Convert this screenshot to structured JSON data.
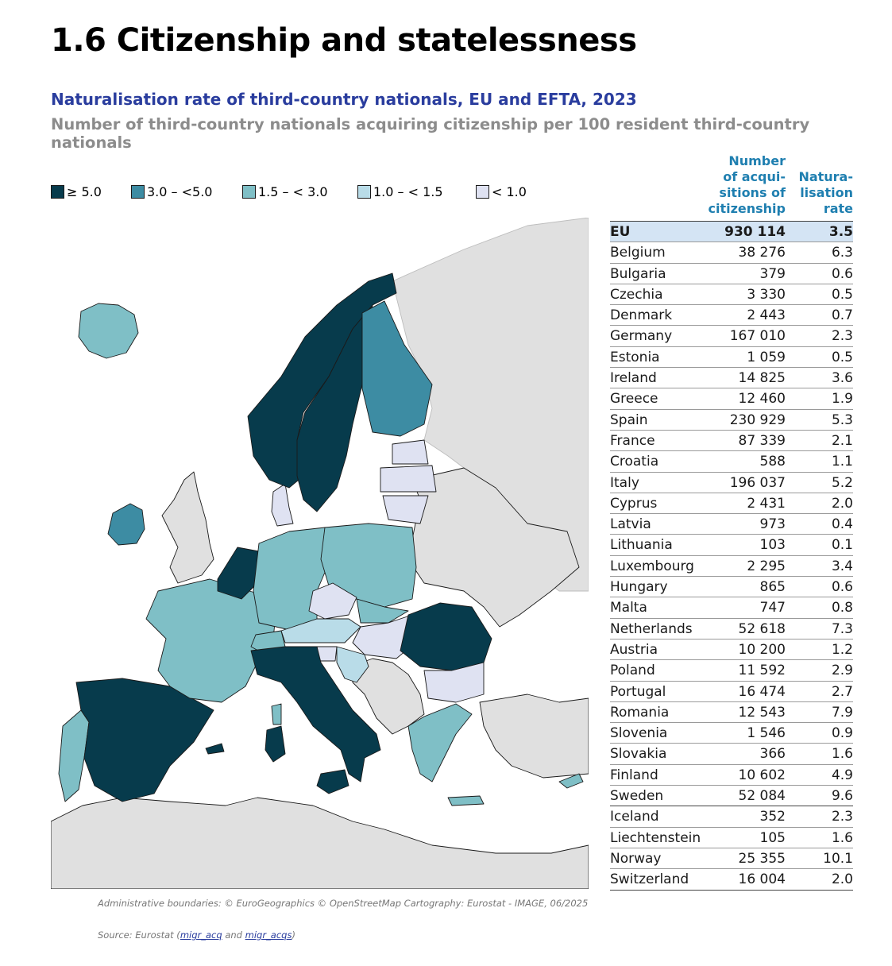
{
  "page_title": "1.6 Citizenship and statelessness",
  "chart_title": "Naturalisation rate of third-country nationals, EU and EFTA, 2023",
  "chart_subtitle": "Number of third-country nationals acquiring citizenship per 100 resident third-country nationals",
  "legend": [
    {
      "label": "≥ 5.0",
      "color": "#073b4c"
    },
    {
      "label": "3.0 – <5.0",
      "color": "#3d8ca3"
    },
    {
      "label": "1.5 – < 3.0",
      "color": "#7fbfc6"
    },
    {
      "label": "1.0 – < 1.5",
      "color": "#b9dce8"
    },
    {
      "label": "< 1.0",
      "color": "#dfe2f2"
    }
  ],
  "colors": {
    "land_other": "#e0e0e0",
    "sea": "#ffffff",
    "border": "#1a1a1a"
  },
  "table": {
    "col_number": "Number\nof acqui-\nsitions of\ncitizenship",
    "col_rate": "Natura-\nlisation\nrate",
    "rows": [
      {
        "name": "EU",
        "number": "930 114",
        "rate": "3.5"
      },
      {
        "name": "Belgium",
        "number": "38 276",
        "rate": "6.3"
      },
      {
        "name": "Bulgaria",
        "number": "379",
        "rate": "0.6"
      },
      {
        "name": "Czechia",
        "number": "3 330",
        "rate": "0.5"
      },
      {
        "name": "Denmark",
        "number": "2 443",
        "rate": "0.7"
      },
      {
        "name": "Germany",
        "number": "167 010",
        "rate": "2.3"
      },
      {
        "name": "Estonia",
        "number": "1 059",
        "rate": "0.5"
      },
      {
        "name": "Ireland",
        "number": "14 825",
        "rate": "3.6"
      },
      {
        "name": "Greece",
        "number": "12 460",
        "rate": "1.9"
      },
      {
        "name": "Spain",
        "number": "230 929",
        "rate": "5.3"
      },
      {
        "name": "France",
        "number": "87 339",
        "rate": "2.1"
      },
      {
        "name": "Croatia",
        "number": "588",
        "rate": "1.1"
      },
      {
        "name": "Italy",
        "number": "196 037",
        "rate": "5.2"
      },
      {
        "name": "Cyprus",
        "number": "2 431",
        "rate": "2.0"
      },
      {
        "name": "Latvia",
        "number": "973",
        "rate": "0.4"
      },
      {
        "name": "Lithuania",
        "number": "103",
        "rate": "0.1"
      },
      {
        "name": "Luxembourg",
        "number": "2 295",
        "rate": "3.4"
      },
      {
        "name": "Hungary",
        "number": "865",
        "rate": "0.6"
      },
      {
        "name": "Malta",
        "number": "747",
        "rate": "0.8"
      },
      {
        "name": "Netherlands",
        "number": "52 618",
        "rate": "7.3"
      },
      {
        "name": "Austria",
        "number": "10 200",
        "rate": "1.2"
      },
      {
        "name": "Poland",
        "number": "11 592",
        "rate": "2.9"
      },
      {
        "name": "Portugal",
        "number": "16 474",
        "rate": "2.7"
      },
      {
        "name": "Romania",
        "number": "12 543",
        "rate": "7.9"
      },
      {
        "name": "Slovenia",
        "number": "1 546",
        "rate": "0.9"
      },
      {
        "name": "Slovakia",
        "number": "366",
        "rate": "1.6"
      },
      {
        "name": "Finland",
        "number": "10 602",
        "rate": "4.9"
      },
      {
        "name": "Sweden",
        "number": "52 084",
        "rate": "9.6"
      },
      {
        "name": "Iceland",
        "number": "352",
        "rate": "2.3"
      },
      {
        "name": "Liechtenstein",
        "number": "105",
        "rate": "1.6"
      },
      {
        "name": "Norway",
        "number": "25 355",
        "rate": "10.1"
      },
      {
        "name": "Switzerland",
        "number": "16 004",
        "rate": "2.0"
      }
    ]
  },
  "footnotes": {
    "boundaries": "Administrative boundaries: © EuroGeographics © OpenStreetMap Cartography: Eurostat - IMAGE, 06/2025",
    "source_prefix": "Source: Eurostat (",
    "source_link1": "migr_acq",
    "source_and": " and ",
    "source_link2": "migr_acqs",
    "source_suffix": ")"
  }
}
